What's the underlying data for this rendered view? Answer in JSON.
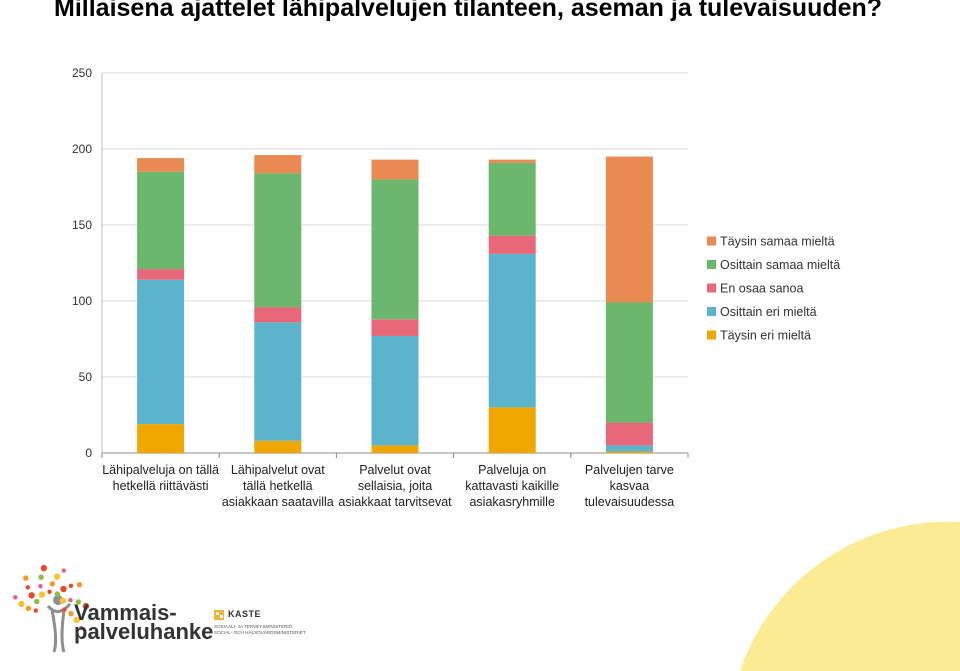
{
  "title": "Millaisena ajattelet lähipalvelujen tilanteen, aseman ja tulevaisuuden?",
  "chart_data": {
    "type": "bar",
    "stacked": true,
    "title": "Millaisena ajattelet lähipalvelujen tilanteen, aseman ja tulevaisuuden?",
    "xlabel": "",
    "ylabel": "",
    "ylim": [
      0,
      250
    ],
    "yticks": [
      0,
      50,
      100,
      150,
      200,
      250
    ],
    "grid": true,
    "legend_position": "right",
    "categories": [
      [
        "Lähipalveluja on tällä",
        "hetkellä riittävästi"
      ],
      [
        "Lähipalvelut ovat",
        "tällä hetkellä",
        "asiakkaan saatavilla"
      ],
      [
        "Palvelut ovat",
        "sellaisia, joita",
        "asiakkaat tarvitsevat"
      ],
      [
        "Palveluja on",
        "kattavasti kaikille",
        "asiakasryhmille"
      ],
      [
        "Palvelujen tarve",
        "kasvaa",
        "tulevaisuudessa"
      ]
    ],
    "series": [
      {
        "name": "Täysin eri mieltä",
        "color": "#F0A800",
        "values": [
          19,
          8,
          5,
          30,
          1
        ]
      },
      {
        "name": "Osittain eri mieltä",
        "color": "#5CB3CC",
        "values": [
          95,
          78,
          72,
          101,
          4
        ]
      },
      {
        "name": "En osaa sanoa",
        "color": "#E8687A",
        "values": [
          7,
          10,
          11,
          12,
          15
        ]
      },
      {
        "name": "Osittain samaa mieltä",
        "color": "#6BB76D",
        "values": [
          64,
          88,
          92,
          48,
          79
        ]
      },
      {
        "name": "Täysin samaa mieltä",
        "color": "#E88A52",
        "values": [
          9,
          12,
          13,
          2,
          96
        ]
      }
    ],
    "legend_order": [
      "Täysin samaa mieltä",
      "Osittain samaa mieltä",
      "En osaa sanoa",
      "Osittain eri mieltä",
      "Täysin eri mieltä"
    ]
  },
  "logos": {
    "vammaispalveluhanke": [
      "Vammais-",
      "palveluhanke"
    ],
    "kaste_name": "KASTE",
    "kaste_lines": [
      "SOSIAALI- JA TERVEYSMINISTERIÖ",
      "SOCIAL- OCH HÄLSOVÅRDSMINISTERIET"
    ]
  }
}
